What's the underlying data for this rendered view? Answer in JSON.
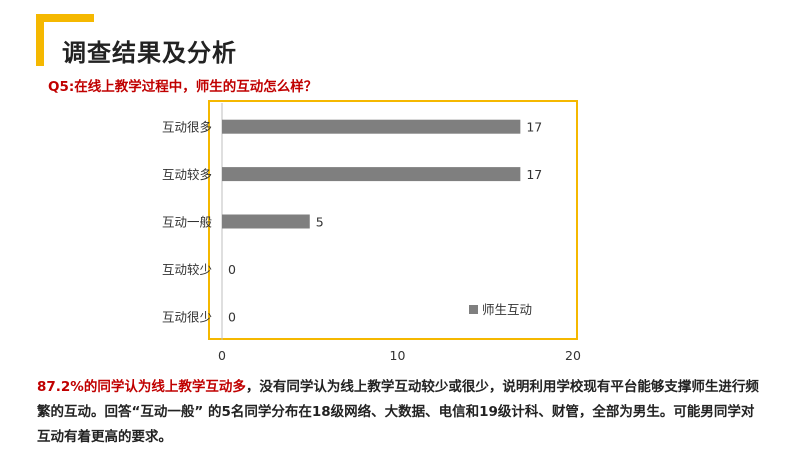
{
  "header": {
    "title": "调查结果及分析",
    "question": "Q5:在线上教学过程中，师生的互动怎么样？"
  },
  "chart_data": {
    "type": "bar",
    "orientation": "horizontal",
    "categories": [
      "互动很多",
      "互动较多",
      "互动一般",
      "互动较少",
      "互动很少"
    ],
    "series": [
      {
        "name": "师生互动",
        "values": [
          17,
          17,
          5,
          0,
          0
        ],
        "color": "#7f7f7f"
      }
    ],
    "xlim": [
      0,
      20
    ],
    "xticks": [
      0,
      10,
      20
    ],
    "grid": false,
    "legend_position": "bottom-right",
    "title": "",
    "xlabel": "",
    "ylabel": ""
  },
  "summary": {
    "highlight": "87.2%的同学认为线上教学互动多",
    "rest": "，没有同学认为线上教学互动较少或很少，说明利用学校现有平台能够支撑师生进行频繁的互动。回答“互动一般” 的5名同学分布在18级网络、大数据、电信和19级计科、财管，全部为男生。可能男同学对互动有着更高的要求。"
  }
}
